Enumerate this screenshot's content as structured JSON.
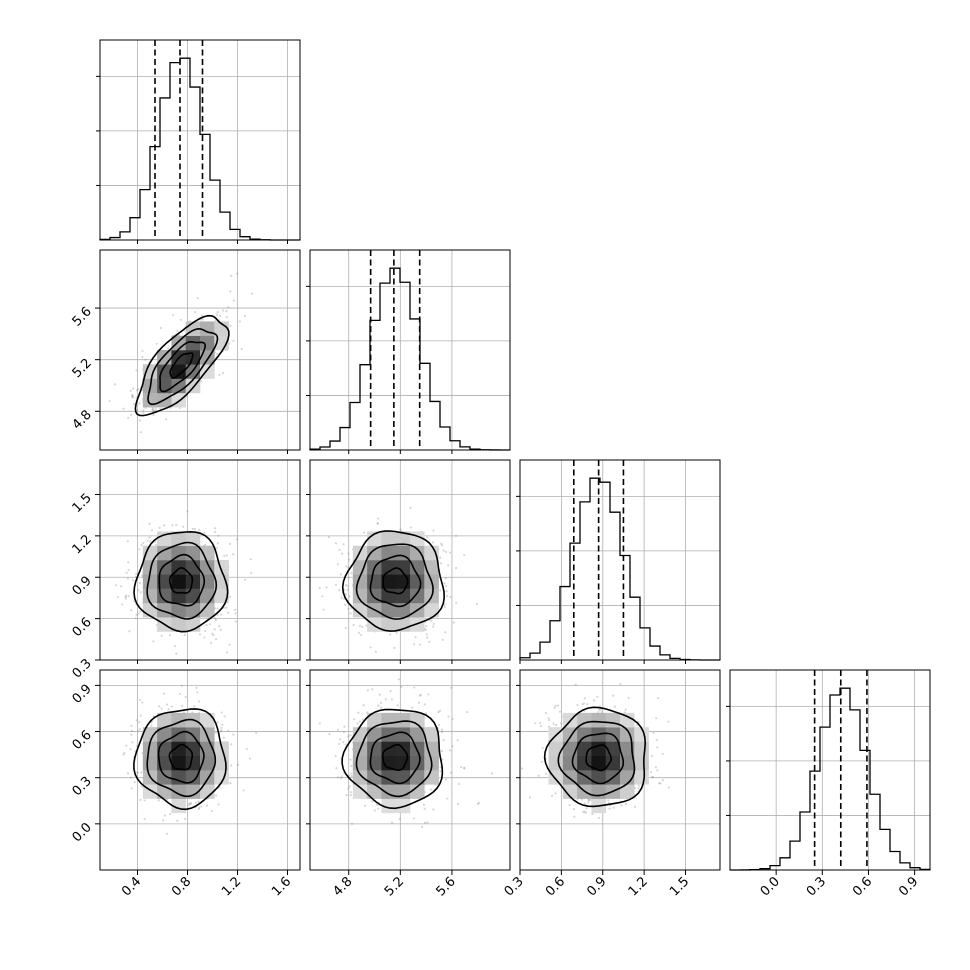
{
  "chart_data": {
    "type": "corner",
    "grid": true,
    "parameters": [
      {
        "mean": 0.75,
        "sd": 0.18,
        "range": [
          0.1,
          1.7
        ],
        "quantiles": [
          0.54,
          0.74,
          0.92
        ],
        "ticks": [
          0.4,
          0.8,
          1.2,
          1.6
        ],
        "tick_labels": [
          "0.4",
          "0.8",
          "1.2",
          "1.6"
        ]
      },
      {
        "mean": 5.16,
        "sd": 0.19,
        "range": [
          4.5,
          6.05
        ],
        "quantiles": [
          4.97,
          5.15,
          5.35
        ],
        "ticks": [
          4.8,
          5.2,
          5.6
        ],
        "tick_labels": [
          "4.8",
          "5.2",
          "5.6"
        ]
      },
      {
        "mean": 0.87,
        "sd": 0.18,
        "range": [
          0.3,
          1.75
        ],
        "quantiles": [
          0.69,
          0.87,
          1.05
        ],
        "ticks": [
          0.3,
          0.6,
          0.9,
          1.2,
          1.5
        ],
        "tick_labels": [
          "0.3",
          "0.6",
          "0.9",
          "1.2",
          "1.5"
        ]
      },
      {
        "mean": 0.43,
        "sd": 0.16,
        "range": [
          -0.3,
          1.0
        ],
        "quantiles": [
          0.25,
          0.42,
          0.59
        ],
        "ticks": [
          0.0,
          0.3,
          0.6,
          0.9
        ],
        "tick_labels": [
          "0.0",
          "0.3",
          "0.6",
          "0.9"
        ]
      }
    ],
    "correlations": [
      [
        1.0,
        0.72,
        0.0,
        0.0
      ],
      [
        0.72,
        1.0,
        0.0,
        0.0
      ],
      [
        0.0,
        0.0,
        1.0,
        0.0
      ],
      [
        0.0,
        0.0,
        0.0,
        1.0
      ]
    ],
    "histogram_bins": 20,
    "contour_levels_sigma": [
      0.5,
      1.0,
      1.5,
      2.0
    ]
  }
}
